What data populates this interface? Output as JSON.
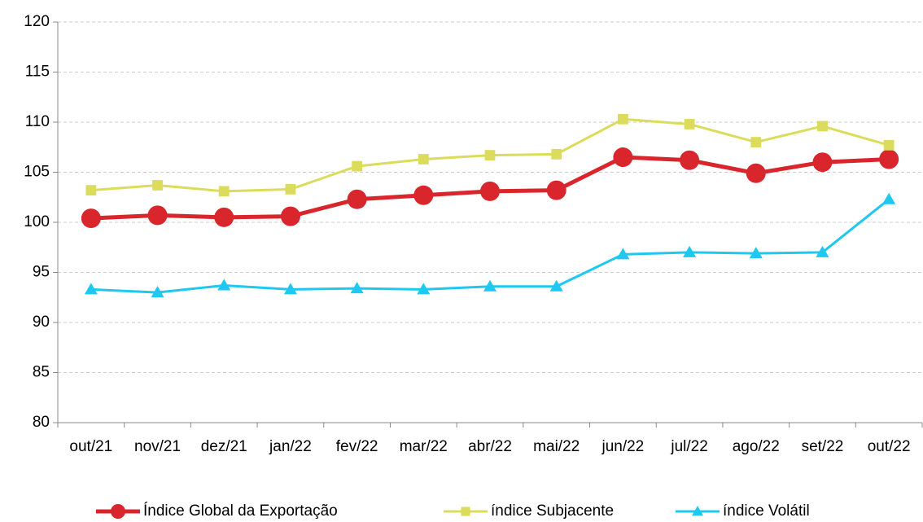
{
  "chart_data": {
    "type": "line",
    "categories": [
      "out/21",
      "nov/21",
      "dez/21",
      "jan/22",
      "fev/22",
      "mar/22",
      "abr/22",
      "mai/22",
      "jun/22",
      "jul/22",
      "ago/22",
      "set/22",
      "out/22"
    ],
    "series": [
      {
        "name": "Índice Global da Exportação",
        "color": "#d9262c",
        "marker": "circle",
        "values": [
          100.4,
          100.7,
          100.5,
          100.6,
          102.3,
          102.7,
          103.1,
          103.2,
          106.5,
          106.2,
          104.9,
          106.0,
          106.3
        ]
      },
      {
        "name": "índice Subjacente",
        "color": "#dcdc5c",
        "marker": "square",
        "values": [
          103.2,
          103.7,
          103.1,
          103.3,
          105.6,
          106.3,
          106.7,
          106.8,
          110.3,
          109.8,
          108.0,
          109.6,
          107.7
        ]
      },
      {
        "name": "índice Volátil",
        "color": "#1ec8f0",
        "marker": "triangle",
        "values": [
          93.3,
          93.0,
          93.7,
          93.3,
          93.4,
          93.3,
          93.6,
          93.6,
          96.8,
          97.0,
          96.9,
          97.0,
          102.3
        ]
      }
    ],
    "ylim": [
      80,
      120
    ],
    "yticks": [
      80,
      85,
      90,
      95,
      100,
      105,
      110,
      115,
      120
    ],
    "grid": true,
    "legend": "bottom"
  }
}
